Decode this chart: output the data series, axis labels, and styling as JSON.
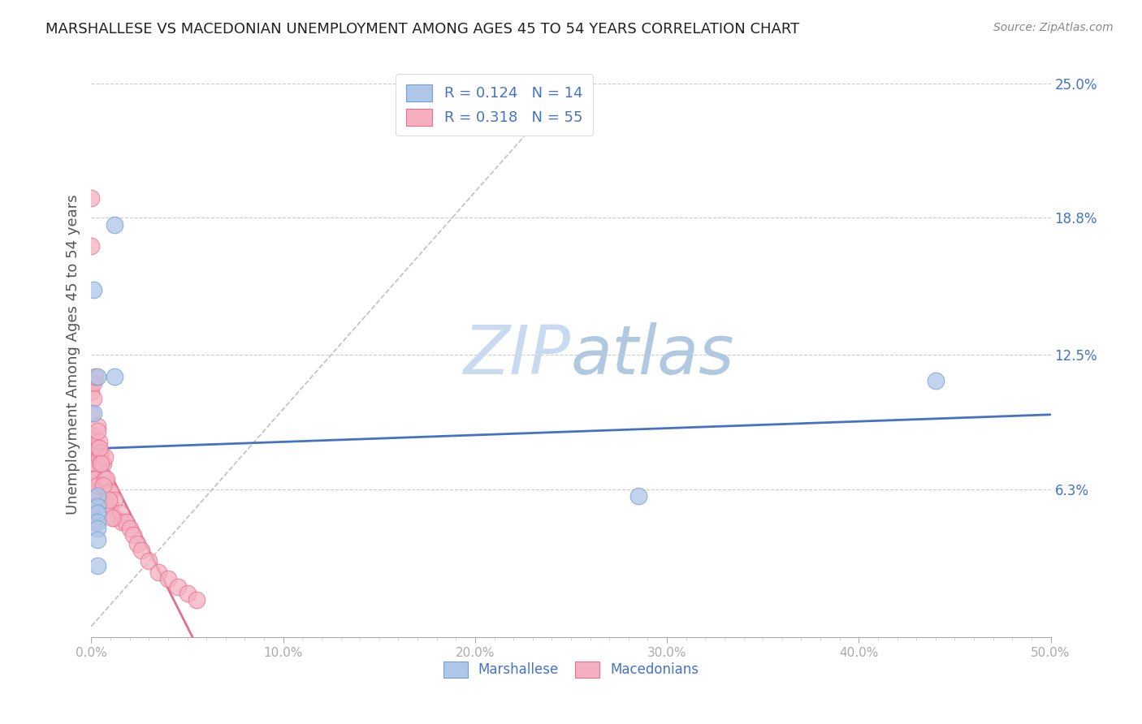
{
  "title": "MARSHALLESE VS MACEDONIAN UNEMPLOYMENT AMONG AGES 45 TO 54 YEARS CORRELATION CHART",
  "source": "Source: ZipAtlas.com",
  "ylabel": "Unemployment Among Ages 45 to 54 years",
  "xlim": [
    0.0,
    0.5
  ],
  "ylim": [
    -0.005,
    0.255
  ],
  "xtick_labels": [
    "0.0%",
    "",
    "",
    "",
    "",
    "",
    "",
    "",
    "",
    "",
    "10.0%",
    "",
    "",
    "",
    "",
    "",
    "",
    "",
    "",
    "",
    "20.0%",
    "",
    "",
    "",
    "",
    "",
    "",
    "",
    "",
    "",
    "30.0%",
    "",
    "",
    "",
    "",
    "",
    "",
    "",
    "",
    "",
    "40.0%",
    "",
    "",
    "",
    "",
    "",
    "",
    "",
    "",
    "",
    "50.0%"
  ],
  "xtick_values": [
    0.0,
    0.01,
    0.02,
    0.03,
    0.04,
    0.05,
    0.06,
    0.07,
    0.08,
    0.09,
    0.1,
    0.11,
    0.12,
    0.13,
    0.14,
    0.15,
    0.16,
    0.17,
    0.18,
    0.19,
    0.2,
    0.21,
    0.22,
    0.23,
    0.24,
    0.25,
    0.26,
    0.27,
    0.28,
    0.29,
    0.3,
    0.31,
    0.32,
    0.33,
    0.34,
    0.35,
    0.36,
    0.37,
    0.38,
    0.39,
    0.4,
    0.41,
    0.42,
    0.43,
    0.44,
    0.45,
    0.46,
    0.47,
    0.48,
    0.49,
    0.5
  ],
  "ytick_labels": [
    "6.3%",
    "12.5%",
    "18.8%",
    "25.0%"
  ],
  "ytick_values": [
    0.063,
    0.125,
    0.188,
    0.25
  ],
  "marshallese_color": "#aec6e8",
  "macedonian_color": "#f4afc0",
  "marshallese_edge_color": "#6fa0d0",
  "macedonian_edge_color": "#e87090",
  "marshallese_line_color": "#4472c4",
  "macedonian_line_color": "#e07090",
  "marshallese_R": 0.124,
  "marshallese_N": 14,
  "macedonian_R": 0.318,
  "macedonian_N": 55,
  "legend_text_color": "#4472c4",
  "background_color": "#ffffff",
  "grid_color": "#cccccc",
  "watermark": "ZIPatlas",
  "marshallese_x": [
    0.001,
    0.001,
    0.012,
    0.012,
    0.003,
    0.003,
    0.003,
    0.003,
    0.003,
    0.003,
    0.003,
    0.44,
    0.285,
    0.003
  ],
  "marshallese_y": [
    0.098,
    0.155,
    0.185,
    0.115,
    0.115,
    0.06,
    0.055,
    0.052,
    0.048,
    0.045,
    0.04,
    0.113,
    0.06,
    0.028
  ],
  "macedonian_x": [
    0.0,
    0.0,
    0.0,
    0.0,
    0.0,
    0.0,
    0.0,
    0.0,
    0.001,
    0.001,
    0.001,
    0.001,
    0.001,
    0.001,
    0.001,
    0.002,
    0.002,
    0.002,
    0.002,
    0.002,
    0.003,
    0.003,
    0.003,
    0.004,
    0.004,
    0.005,
    0.005,
    0.006,
    0.007,
    0.007,
    0.008,
    0.009,
    0.01,
    0.01,
    0.012,
    0.012,
    0.015,
    0.016,
    0.018,
    0.02,
    0.022,
    0.024,
    0.026,
    0.03,
    0.035,
    0.04,
    0.045,
    0.05,
    0.055,
    0.003,
    0.004,
    0.005,
    0.006,
    0.009,
    0.011
  ],
  "macedonian_y": [
    0.197,
    0.175,
    0.112,
    0.108,
    0.098,
    0.088,
    0.078,
    0.068,
    0.112,
    0.105,
    0.075,
    0.068,
    0.062,
    0.055,
    0.048,
    0.115,
    0.08,
    0.075,
    0.068,
    0.062,
    0.092,
    0.082,
    0.065,
    0.085,
    0.078,
    0.08,
    0.075,
    0.075,
    0.078,
    0.068,
    0.068,
    0.062,
    0.062,
    0.055,
    0.058,
    0.05,
    0.052,
    0.048,
    0.048,
    0.045,
    0.042,
    0.038,
    0.035,
    0.03,
    0.025,
    0.022,
    0.018,
    0.015,
    0.012,
    0.09,
    0.082,
    0.075,
    0.065,
    0.058,
    0.05
  ]
}
